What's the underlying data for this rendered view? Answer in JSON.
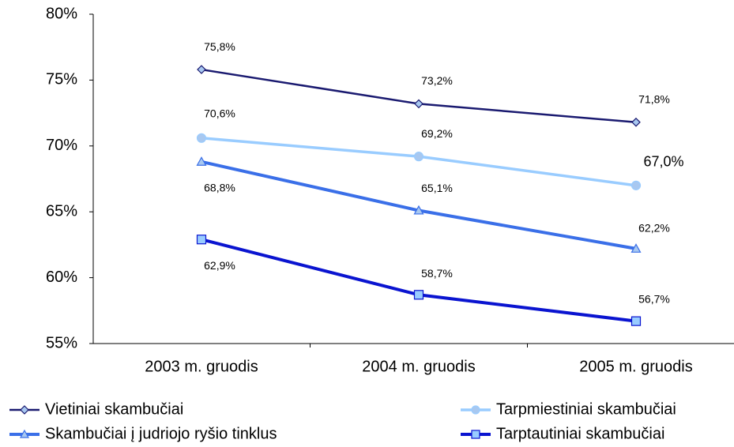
{
  "chart_data": {
    "type": "line",
    "categories": [
      "2003 m. gruodis",
      "2004 m. gruodis",
      "2005 m. gruodis"
    ],
    "series": [
      {
        "name": "Vietiniai skambučiai",
        "color": "#1a1a70",
        "marker": "diamond",
        "marker_fill": "#a8c8f0",
        "values": [
          75.8,
          73.2,
          71.8
        ],
        "value_labels": [
          "75,8%",
          "73,2%",
          "71,8%"
        ]
      },
      {
        "name": "Tarpmiestiniai skambučiai",
        "color": "#99ccff",
        "marker": "circle",
        "marker_fill": "#a8c8f0",
        "values": [
          70.6,
          69.2,
          67.0
        ],
        "value_labels": [
          "70,6%",
          "69,2%",
          "67,0%"
        ]
      },
      {
        "name": "Skambučiai į judriojo ryšio tinklus",
        "color": "#3a6fe8",
        "marker": "triangle",
        "marker_fill": "#a8c8f0",
        "values": [
          68.8,
          65.1,
          62.2
        ],
        "value_labels": [
          "68,8%",
          "65,1%",
          "62,2%"
        ]
      },
      {
        "name": "Tarptautiniai skambučiai",
        "color": "#0a14d0",
        "marker": "square",
        "marker_fill": "#99ccff",
        "values": [
          62.9,
          58.7,
          56.7
        ],
        "value_labels": [
          "62,9%",
          "58,7%",
          "56,7%"
        ]
      }
    ],
    "ylim": [
      55,
      80
    ],
    "yticks": [
      {
        "value": 55,
        "label": "55%"
      },
      {
        "value": 60,
        "label": "60%"
      },
      {
        "value": 65,
        "label": "65%"
      },
      {
        "value": 70,
        "label": "70%"
      },
      {
        "value": 75,
        "label": "75%"
      },
      {
        "value": 80,
        "label": "80%"
      }
    ],
    "legend": "bottom"
  }
}
